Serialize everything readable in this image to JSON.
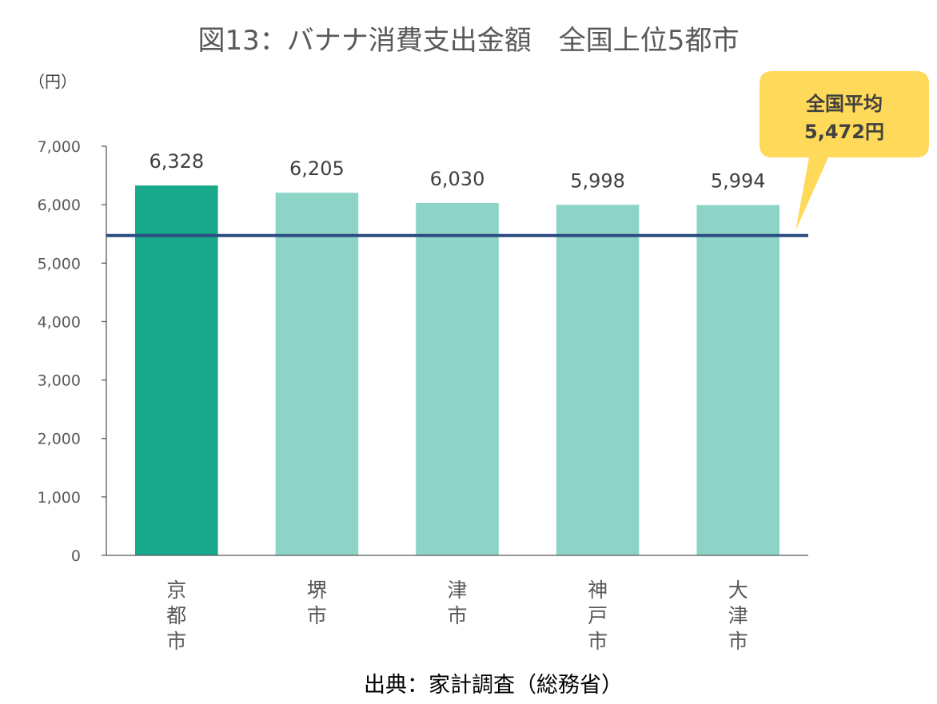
{
  "chart_data": {
    "type": "bar",
    "title": "図13：バナナ消費支出金額　全国上位5都市",
    "unit_label": "（円）",
    "categories": [
      "京都市",
      "堺市",
      "津市",
      "神戸市",
      "大津市"
    ],
    "values": [
      6328,
      6205,
      6030,
      5998,
      5994
    ],
    "value_labels": [
      "6,328",
      "6,205",
      "6,030",
      "5,998",
      "5,994"
    ],
    "y_ticks": [
      "0",
      "1,000",
      "2,000",
      "3,000",
      "4,000",
      "5,000",
      "6,000",
      "7,000"
    ],
    "ylim": [
      0,
      7000
    ],
    "grid": false,
    "highlight_index": 0,
    "colors": {
      "highlight": "#18A88A",
      "bar": "#8DD4C7",
      "average_line": "#2D4E82",
      "callout": "#FFD95A",
      "axis": "#595959"
    },
    "reference_line": {
      "value": 5472,
      "label_line1": "全国平均",
      "label_line2": "5,472円"
    },
    "source": "出典：家計調査（総務省）"
  }
}
